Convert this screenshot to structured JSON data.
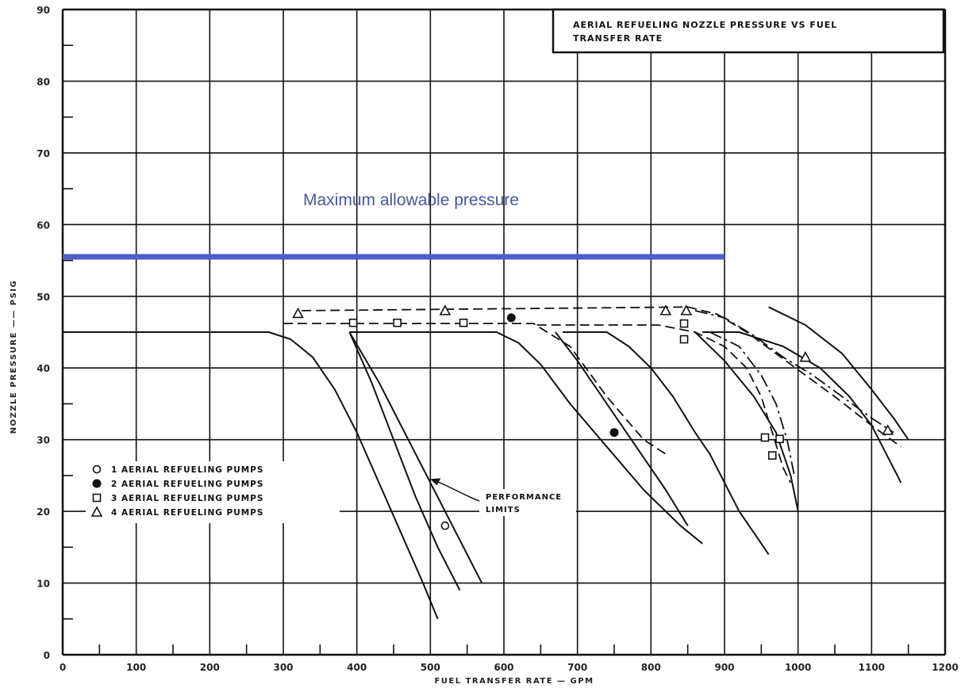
{
  "chart_data": {
    "type": "line",
    "title": "AERIAL REFUELING NOZZLE PRESSURE VS FUEL TRANSFER RATE",
    "title_lines": [
      "AERIAL REFUELING NOZZLE PRESSURE VS FUEL",
      "TRANSFER RATE"
    ],
    "xlabel": "FUEL TRANSFER RATE — GPM",
    "ylabel": "NOZZLE PRESSURE —— PSIG",
    "xlim": [
      0,
      1200
    ],
    "ylim": [
      0,
      90
    ],
    "x_ticks": [
      0,
      100,
      200,
      300,
      400,
      500,
      600,
      700,
      800,
      900,
      1000,
      1100,
      1200
    ],
    "y_ticks": [
      0,
      10,
      20,
      30,
      40,
      50,
      60,
      70,
      80,
      90
    ],
    "grid": true,
    "max_pressure": {
      "label": "Maximum allowable pressure",
      "value": 55.5,
      "x_range": [
        0,
        900
      ],
      "color": "#4a5fc8"
    },
    "performance_curves": [
      {
        "points": [
          [
            0,
            45
          ],
          [
            280,
            45
          ],
          [
            310,
            44
          ],
          [
            340,
            41.5
          ],
          [
            370,
            37
          ],
          [
            400,
            31
          ],
          [
            430,
            24
          ],
          [
            460,
            17
          ],
          [
            490,
            10
          ],
          [
            510,
            5
          ]
        ]
      },
      {
        "points": [
          [
            390,
            45
          ],
          [
            420,
            38
          ],
          [
            450,
            30
          ],
          [
            480,
            22
          ],
          [
            510,
            15
          ],
          [
            540,
            9
          ]
        ]
      },
      {
        "points": [
          [
            390,
            45
          ],
          [
            430,
            38
          ],
          [
            470,
            30
          ],
          [
            510,
            22
          ],
          [
            550,
            14
          ],
          [
            570,
            10
          ]
        ]
      },
      {
        "points": [
          [
            390,
            45
          ],
          [
            590,
            45
          ],
          [
            620,
            43.5
          ],
          [
            650,
            40.5
          ],
          [
            690,
            35
          ],
          [
            740,
            29
          ],
          [
            790,
            23
          ],
          [
            840,
            18
          ],
          [
            870,
            15.5
          ]
        ]
      },
      {
        "points": [
          [
            670,
            45
          ],
          [
            700,
            41
          ],
          [
            740,
            35
          ],
          [
            780,
            29
          ],
          [
            820,
            23
          ],
          [
            850,
            18
          ]
        ]
      },
      {
        "points": [
          [
            680,
            45
          ],
          [
            740,
            45
          ],
          [
            770,
            43
          ],
          [
            800,
            40
          ],
          [
            830,
            36
          ],
          [
            860,
            31
          ],
          [
            880,
            28
          ],
          [
            900,
            24
          ],
          [
            920,
            20
          ],
          [
            940,
            17
          ],
          [
            960,
            14
          ]
        ]
      },
      {
        "points": [
          [
            860,
            45
          ],
          [
            900,
            41
          ],
          [
            940,
            36
          ],
          [
            970,
            31
          ],
          [
            990,
            25
          ],
          [
            1000,
            20
          ]
        ]
      },
      {
        "points": [
          [
            870,
            45
          ],
          [
            920,
            45
          ],
          [
            980,
            43
          ],
          [
            1030,
            40
          ],
          [
            1070,
            36
          ],
          [
            1100,
            32
          ],
          [
            1120,
            28
          ],
          [
            1140,
            24
          ]
        ]
      },
      {
        "points": [
          [
            960,
            48.5
          ],
          [
            1010,
            46
          ],
          [
            1060,
            42
          ],
          [
            1100,
            37
          ],
          [
            1130,
            33
          ],
          [
            1150,
            30
          ]
        ]
      }
    ],
    "pump_curves": [
      {
        "name": "3 AERIAL REFUELING PUMPS",
        "style": "dashed",
        "points": [
          [
            300,
            46.2
          ],
          [
            640,
            46.2
          ],
          [
            690,
            43
          ],
          [
            740,
            36
          ],
          [
            790,
            30
          ],
          [
            820,
            28
          ]
        ]
      },
      {
        "name": "3 AERIAL REFUELING PUMPS",
        "style": "dashed",
        "points": [
          [
            645,
            46
          ],
          [
            810,
            46
          ],
          [
            860,
            45
          ],
          [
            900,
            43
          ],
          [
            930,
            40
          ],
          [
            950,
            36
          ],
          [
            965,
            31
          ],
          [
            980,
            26
          ],
          [
            990,
            24
          ]
        ]
      },
      {
        "name": "4 AERIAL REFUELING PUMPS",
        "style": "dashed",
        "points": [
          [
            325,
            48
          ],
          [
            850,
            48.5
          ],
          [
            890,
            47.5
          ],
          [
            930,
            45
          ],
          [
            970,
            42
          ],
          [
            1010,
            39
          ],
          [
            1050,
            36
          ],
          [
            1100,
            32
          ],
          [
            1140,
            29
          ]
        ]
      },
      {
        "name": "4 AERIAL REFUELING PUMPS",
        "style": "dashdot",
        "points": [
          [
            860,
            48
          ],
          [
            900,
            47
          ],
          [
            940,
            44.5
          ],
          [
            980,
            41.5
          ],
          [
            1020,
            39
          ],
          [
            1060,
            36
          ],
          [
            1100,
            33
          ],
          [
            1130,
            31
          ]
        ]
      },
      {
        "name": "3 AERIAL REFUELING PUMPS",
        "style": "dashdot",
        "points": [
          [
            880,
            45
          ],
          [
            920,
            43
          ],
          [
            950,
            39
          ],
          [
            970,
            35
          ],
          [
            985,
            30
          ],
          [
            995,
            25
          ]
        ]
      }
    ],
    "markers": [
      {
        "symbol": "circle-open",
        "x": 520,
        "y": 18
      },
      {
        "symbol": "circle-filled",
        "x": 610,
        "y": 47
      },
      {
        "symbol": "circle-filled",
        "x": 750,
        "y": 31
      },
      {
        "symbol": "square-open",
        "x": 395,
        "y": 46.3
      },
      {
        "symbol": "square-open",
        "x": 455,
        "y": 46.3
      },
      {
        "symbol": "square-open",
        "x": 545,
        "y": 46.3
      },
      {
        "symbol": "square-open",
        "x": 845,
        "y": 46.2
      },
      {
        "symbol": "square-open",
        "x": 845,
        "y": 44
      },
      {
        "symbol": "square-open",
        "x": 955,
        "y": 30.3
      },
      {
        "symbol": "square-open",
        "x": 975,
        "y": 30.1
      },
      {
        "symbol": "square-open",
        "x": 965,
        "y": 27.8
      },
      {
        "symbol": "triangle-open",
        "x": 320,
        "y": 47.6
      },
      {
        "symbol": "triangle-open",
        "x": 520,
        "y": 48
      },
      {
        "symbol": "triangle-open",
        "x": 820,
        "y": 48
      },
      {
        "symbol": "triangle-open",
        "x": 848,
        "y": 48
      },
      {
        "symbol": "triangle-open",
        "x": 1010,
        "y": 41.5
      },
      {
        "symbol": "triangle-open",
        "x": 1122,
        "y": 31.3
      }
    ],
    "legend": [
      {
        "symbol": "circle-open",
        "label": "1 AERIAL REFUELING PUMPS"
      },
      {
        "symbol": "circle-filled",
        "label": "2 AERIAL REFUELING PUMPS"
      },
      {
        "symbol": "square-open",
        "label": "3 AERIAL REFUELING PUMPS"
      },
      {
        "symbol": "triangle-open",
        "label": "4 AERIAL REFUELING PUMPS"
      }
    ],
    "annotation": {
      "lines": [
        "PERFORMANCE",
        "LIMITS"
      ],
      "arrow_target": [
        500,
        24.5
      ]
    }
  }
}
